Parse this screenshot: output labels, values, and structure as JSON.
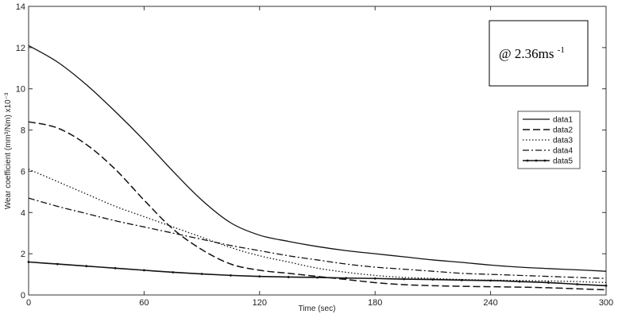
{
  "chart_data": {
    "type": "line",
    "title": "",
    "xlabel": "Time (sec)",
    "ylabel": "Wear coefficient (mm³/Nm) x10⁻³",
    "xlim": [
      0,
      300
    ],
    "ylim": [
      0,
      14
    ],
    "xticks": [
      0,
      60,
      120,
      180,
      240,
      300
    ],
    "yticks": [
      0,
      2,
      4,
      6,
      8,
      10,
      12,
      14
    ],
    "grid": false,
    "legend_position": "right",
    "annotation": {
      "text": "@ 2.36ms",
      "superscript": "-1"
    },
    "series": [
      {
        "name": "data1",
        "style": "solid",
        "x": [
          0,
          15,
          30,
          45,
          60,
          75,
          90,
          105,
          120,
          135,
          150,
          165,
          180,
          195,
          210,
          225,
          240,
          255,
          270,
          285,
          300
        ],
        "y": [
          12.1,
          11.3,
          10.2,
          8.9,
          7.5,
          6.0,
          4.6,
          3.5,
          2.9,
          2.6,
          2.35,
          2.15,
          2.0,
          1.85,
          1.7,
          1.58,
          1.45,
          1.35,
          1.28,
          1.22,
          1.15
        ]
      },
      {
        "name": "data2",
        "style": "dashed",
        "x": [
          0,
          15,
          30,
          45,
          60,
          75,
          90,
          105,
          120,
          135,
          150,
          165,
          180,
          195,
          210,
          225,
          240,
          255,
          270,
          285,
          300
        ],
        "y": [
          8.4,
          8.1,
          7.3,
          6.1,
          4.6,
          3.2,
          2.2,
          1.5,
          1.2,
          1.05,
          0.9,
          0.75,
          0.6,
          0.5,
          0.45,
          0.42,
          0.4,
          0.38,
          0.35,
          0.3,
          0.25
        ]
      },
      {
        "name": "data3",
        "style": "dotted",
        "x": [
          0,
          15,
          30,
          45,
          60,
          75,
          90,
          105,
          120,
          135,
          150,
          165,
          180,
          195,
          210,
          225,
          240,
          255,
          270,
          285,
          300
        ],
        "y": [
          6.1,
          5.5,
          4.9,
          4.3,
          3.8,
          3.3,
          2.8,
          2.3,
          1.9,
          1.6,
          1.3,
          1.1,
          0.95,
          0.85,
          0.8,
          0.75,
          0.72,
          0.7,
          0.68,
          0.65,
          0.6
        ]
      },
      {
        "name": "data4",
        "style": "dashdot",
        "x": [
          0,
          15,
          30,
          45,
          60,
          75,
          90,
          105,
          120,
          135,
          150,
          165,
          180,
          195,
          210,
          225,
          240,
          255,
          270,
          285,
          300
        ],
        "y": [
          4.7,
          4.3,
          3.95,
          3.6,
          3.3,
          3.0,
          2.7,
          2.4,
          2.15,
          1.9,
          1.7,
          1.5,
          1.35,
          1.25,
          1.15,
          1.05,
          1.0,
          0.95,
          0.9,
          0.85,
          0.8
        ]
      },
      {
        "name": "data5",
        "style": "solid-marker",
        "x": [
          0,
          15,
          30,
          45,
          60,
          75,
          90,
          105,
          120,
          135,
          150,
          165,
          180,
          195,
          210,
          225,
          240,
          255,
          270,
          285,
          300
        ],
        "y": [
          1.6,
          1.5,
          1.4,
          1.3,
          1.2,
          1.1,
          1.02,
          0.95,
          0.9,
          0.87,
          0.85,
          0.82,
          0.8,
          0.77,
          0.75,
          0.72,
          0.7,
          0.65,
          0.6,
          0.52,
          0.45
        ]
      }
    ]
  }
}
